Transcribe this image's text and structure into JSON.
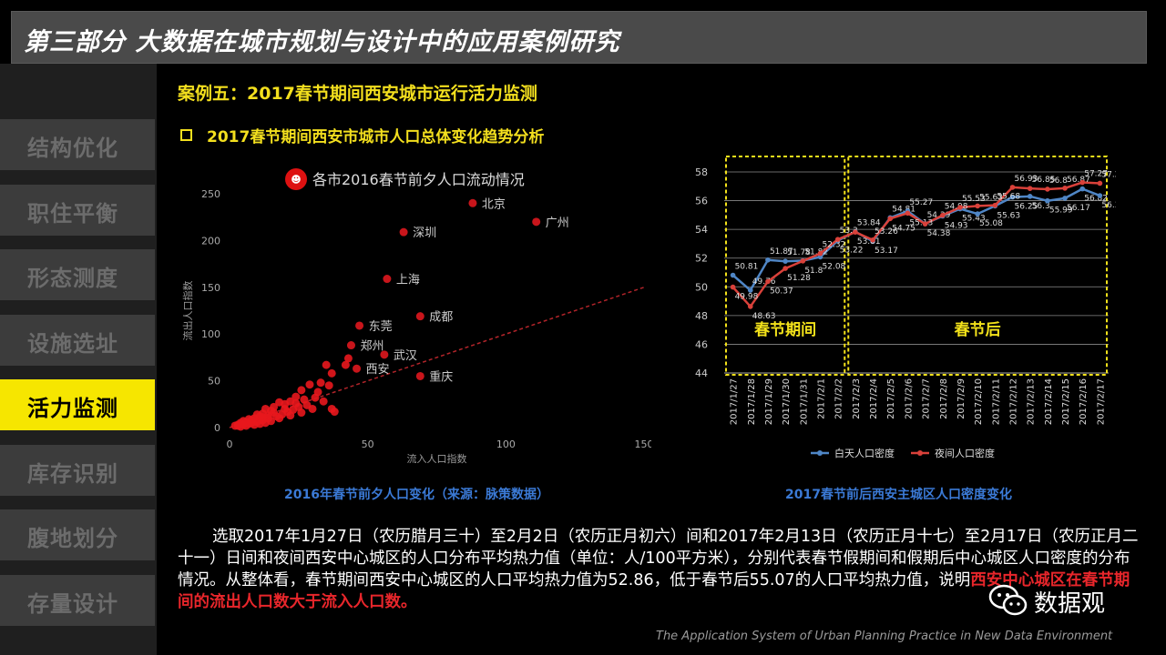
{
  "header": {
    "title": "第三部分  大数据在城市规划与设计中的应用案例研究"
  },
  "sidebar": {
    "items": [
      {
        "label": "结构优化",
        "active": false
      },
      {
        "label": "职住平衡",
        "active": false
      },
      {
        "label": "形态测度",
        "active": false
      },
      {
        "label": "设施选址",
        "active": false
      },
      {
        "label": "活力监测",
        "active": true
      },
      {
        "label": "库存识别",
        "active": false
      },
      {
        "label": "腹地划分",
        "active": false
      },
      {
        "label": "存量设计",
        "active": false
      }
    ]
  },
  "main": {
    "heading": "案例五：2017春节期间西安城市运行活力监测",
    "subheading": "2017春节期间西安市城市人口总体变化趋势分析",
    "left_caption": "2016年春节前夕人口变化（来源：脉策数据）",
    "right_caption": "2017春节前后西安主城区人口密度变化",
    "paragraph_main": "选取2017年1月27日（农历腊月三十）至2月2日（农历正月初六）间和2017年2月13日（农历正月十七）至2月17日（农历正月二十一）日间和夜间西安中心城区的人口分布平均热力值（单位：人/100平方米），分别代表春节假期间和假期后中心城区人口密度的分布情况。从整体看，春节期间西安中心城区的人口平均热力值为52.86，低于春节后55.07的人口平均热力值，说明",
    "paragraph_emph": "西安中心城区在春节期间的流出人口数大于流入人口数。",
    "footer": "The Application System of Urban Planning Practice in New Data Environment",
    "brand": "数据观"
  },
  "colors": {
    "accent_yellow": "#f6e600",
    "caption_blue": "#3b7ad6",
    "scatter_red": "#e8171d",
    "day_line": "#4f86c6",
    "night_line": "#d9413a"
  },
  "chart_data": [
    {
      "type": "scatter",
      "title": "各市2016春节前夕人口流动情况",
      "xlabel": "流入人口指数",
      "ylabel": "流出人口指数",
      "xlim": [
        0,
        150
      ],
      "ylim": [
        0,
        250
      ],
      "xticks": [
        0,
        50,
        100,
        150
      ],
      "yticks": [
        0,
        50,
        100,
        150,
        200,
        250
      ],
      "trendline": {
        "style": "dashed",
        "from": [
          0,
          0
        ],
        "to": [
          150,
          150
        ]
      },
      "labeled_points": [
        {
          "label": "北京",
          "x": 88,
          "y": 240
        },
        {
          "label": "广州",
          "x": 111,
          "y": 220
        },
        {
          "label": "深圳",
          "x": 63,
          "y": 209
        },
        {
          "label": "上海",
          "x": 57,
          "y": 159
        },
        {
          "label": "成都",
          "x": 69,
          "y": 119
        },
        {
          "label": "东莞",
          "x": 47,
          "y": 109
        },
        {
          "label": "郑州",
          "x": 44,
          "y": 88
        },
        {
          "label": "武汉",
          "x": 56,
          "y": 78
        },
        {
          "label": "西安",
          "x": 46,
          "y": 63
        },
        {
          "label": "重庆",
          "x": 69,
          "y": 55
        }
      ],
      "other_points": [
        [
          43,
          74
        ],
        [
          42,
          67
        ],
        [
          35,
          67
        ],
        [
          37,
          58
        ],
        [
          36,
          45
        ],
        [
          33,
          48
        ],
        [
          29,
          46
        ],
        [
          26,
          40
        ],
        [
          37,
          20
        ],
        [
          38,
          17
        ],
        [
          31,
          32
        ],
        [
          27,
          30
        ],
        [
          24,
          33
        ],
        [
          22,
          28
        ],
        [
          20,
          25
        ],
        [
          18,
          27
        ],
        [
          16,
          22
        ],
        [
          15,
          18
        ],
        [
          13,
          20
        ],
        [
          12,
          15
        ],
        [
          11,
          12
        ],
        [
          10,
          14
        ],
        [
          9,
          10
        ],
        [
          8,
          8
        ],
        [
          7,
          9
        ],
        [
          6,
          6
        ],
        [
          5,
          7
        ],
        [
          4,
          5
        ],
        [
          3,
          3
        ],
        [
          2,
          2
        ],
        [
          28,
          24
        ],
        [
          25,
          22
        ],
        [
          23,
          19
        ],
        [
          21,
          17
        ],
        [
          19,
          14
        ],
        [
          17,
          12
        ],
        [
          14,
          10
        ],
        [
          12,
          8
        ],
        [
          10,
          6
        ],
        [
          8,
          5
        ],
        [
          30,
          20
        ],
        [
          26,
          16
        ],
        [
          22,
          13
        ],
        [
          18,
          10
        ],
        [
          15,
          7
        ],
        [
          13,
          5
        ],
        [
          11,
          4
        ],
        [
          9,
          3
        ],
        [
          6,
          2
        ],
        [
          4,
          1
        ],
        [
          34,
          28
        ],
        [
          32,
          38
        ],
        [
          24,
          26
        ],
        [
          20,
          20
        ],
        [
          16,
          16
        ],
        [
          14,
          13
        ],
        [
          12,
          11
        ],
        [
          7,
          4
        ],
        [
          5,
          3
        ],
        [
          3,
          2
        ]
      ]
    },
    {
      "type": "line",
      "categories": [
        "2017/1/27",
        "2017/1/28",
        "2017/1/29",
        "2017/1/30",
        "2017/1/31",
        "2017/2/1",
        "2017/2/2",
        "2017/2/3",
        "2017/2/4",
        "2017/2/5",
        "2017/2/6",
        "2017/2/7",
        "2017/2/8",
        "2017/2/9",
        "2017/2/10",
        "2017/2/11",
        "2017/2/12",
        "2017/2/13",
        "2017/2/14",
        "2017/2/15",
        "2017/2/16",
        "2017/2/17"
      ],
      "ylim": [
        44,
        58
      ],
      "yticks": [
        44,
        46,
        48,
        50,
        52,
        54,
        56,
        58
      ],
      "series": [
        {
          "name": "白天人口密度",
          "values": [
            50.81,
            49.76,
            51.87,
            51.78,
            51.82,
            52.08,
            53.22,
            53.84,
            53.17,
            54.81,
            55.27,
            54.39,
            54.93,
            55.43,
            55.08,
            55.63,
            56.25,
            56.3,
            55.99,
            56.17,
            56.82,
            56.35
          ]
        },
        {
          "name": "夜间人口密度",
          "values": [
            49.98,
            48.63,
            50.37,
            51.28,
            51.8,
            52.32,
            53.3,
            53.81,
            53.26,
            54.75,
            55.13,
            54.38,
            54.98,
            55.53,
            55.63,
            55.68,
            56.93,
            56.85,
            56.8,
            56.87,
            57.27,
            57.21
          ]
        }
      ],
      "regions": [
        {
          "label": "春节期间",
          "from": "2017/1/27",
          "to": "2017/2/2"
        },
        {
          "label": "春节后",
          "from": "2017/2/3",
          "to": "2017/2/17"
        }
      ],
      "legend_position": "bottom"
    }
  ]
}
